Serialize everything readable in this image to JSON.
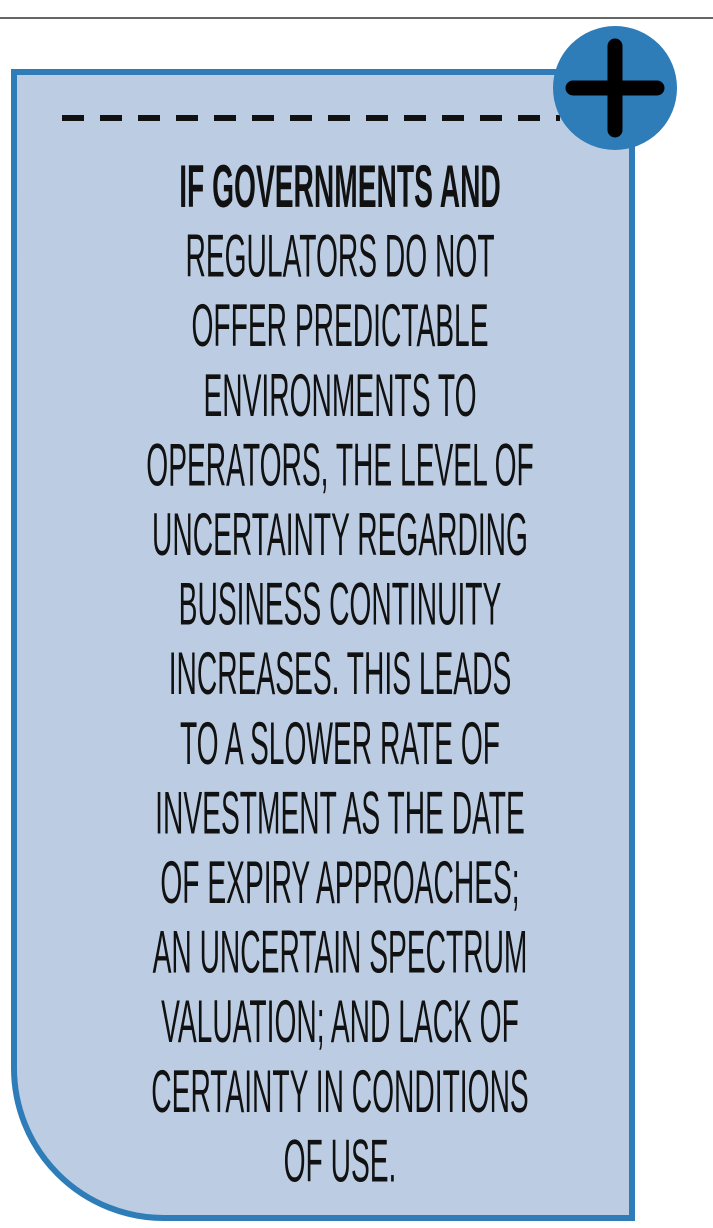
{
  "callout": {
    "lines": [
      "IF GOVERNMENTS AND",
      "REGULATORS DO NOT",
      "OFFER PREDICTABLE",
      "ENVIRONMENTS TO",
      "OPERATORS, THE LEVEL OF",
      "UNCERTAINTY REGARDING",
      "BUSINESS CONTINUITY",
      "INCREASES. THIS LEADS",
      "TO A SLOWER RATE OF",
      "INVESTMENT AS THE DATE",
      "OF EXPIRY APPROACHES;",
      "AN UNCERTAIN SPECTRUM",
      "VALUATION; AND LACK OF",
      "CERTAINTY IN CONDITIONS",
      "OF USE."
    ]
  }
}
